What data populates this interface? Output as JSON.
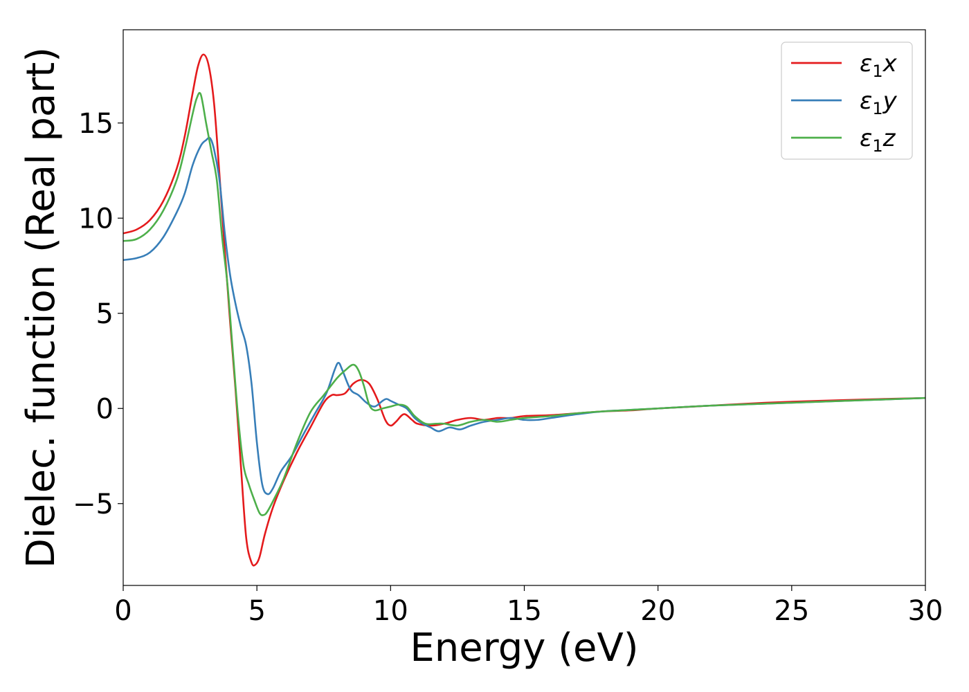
{
  "chart_data": {
    "type": "line",
    "title": "",
    "xlabel": "Energy (eV)",
    "ylabel": "Dielec. function (Real part)",
    "xlim": [
      0,
      30
    ],
    "ylim": [
      -9.3,
      19.9
    ],
    "xticks": [
      0,
      5,
      10,
      15,
      20,
      25,
      30
    ],
    "xtick_labels": [
      "0",
      "5",
      "10",
      "15",
      "20",
      "25",
      "30"
    ],
    "yticks": [
      -5,
      0,
      5,
      10,
      15
    ],
    "ytick_labels": [
      "−5",
      "0",
      "5",
      "10",
      "15"
    ],
    "grid": false,
    "legend_position": "top-right",
    "series": [
      {
        "name": "ε₁x",
        "legend": {
          "base": "ε",
          "sub": "1",
          "var": "x"
        },
        "color": "#e41a1c",
        "x": [
          0,
          0.5,
          1.0,
          1.5,
          2.0,
          2.3,
          2.6,
          2.8,
          3.0,
          3.2,
          3.4,
          3.6,
          3.8,
          4.0,
          4.2,
          4.4,
          4.6,
          4.8,
          4.95,
          5.1,
          5.3,
          5.6,
          6.0,
          6.5,
          7.0,
          7.5,
          7.8,
          8.0,
          8.3,
          8.6,
          8.9,
          9.2,
          9.5,
          9.8,
          10.0,
          10.2,
          10.5,
          10.8,
          11.0,
          11.5,
          12.0,
          12.5,
          13.0,
          13.5,
          14.0,
          14.5,
          15.0,
          16.0,
          17.0,
          18.0,
          19.0,
          20.0,
          22.0,
          24.0,
          26.0,
          28.0,
          30.0
        ],
        "y": [
          9.2,
          9.4,
          9.9,
          10.9,
          12.6,
          14.3,
          16.6,
          18.0,
          18.6,
          18.0,
          16.0,
          12.3,
          8.3,
          4.5,
          1.0,
          -3.0,
          -6.8,
          -8.1,
          -8.2,
          -7.8,
          -6.6,
          -5.2,
          -3.8,
          -2.3,
          -1.0,
          0.3,
          0.7,
          0.7,
          0.8,
          1.3,
          1.5,
          1.3,
          0.5,
          -0.6,
          -0.9,
          -0.7,
          -0.3,
          -0.6,
          -0.8,
          -0.9,
          -0.8,
          -0.6,
          -0.5,
          -0.6,
          -0.5,
          -0.5,
          -0.4,
          -0.35,
          -0.25,
          -0.15,
          -0.1,
          0.0,
          0.15,
          0.3,
          0.4,
          0.48,
          0.55
        ]
      },
      {
        "name": "ε₁y",
        "legend": {
          "base": "ε",
          "sub": "1",
          "var": "y"
        },
        "color": "#377eb8",
        "x": [
          0,
          0.5,
          1.0,
          1.5,
          2.0,
          2.3,
          2.6,
          2.9,
          3.1,
          3.25,
          3.4,
          3.6,
          3.8,
          4.0,
          4.2,
          4.4,
          4.6,
          4.8,
          5.0,
          5.2,
          5.4,
          5.6,
          5.9,
          6.3,
          6.8,
          7.2,
          7.6,
          7.9,
          8.05,
          8.2,
          8.5,
          8.8,
          9.1,
          9.4,
          9.7,
          9.85,
          10.0,
          10.3,
          10.6,
          10.9,
          11.2,
          11.5,
          11.8,
          12.2,
          12.6,
          13.0,
          13.5,
          14.0,
          14.5,
          15.0,
          15.5,
          16.0,
          17.0,
          18.0,
          20.0,
          22.0,
          25.0,
          30.0
        ],
        "y": [
          7.8,
          7.9,
          8.2,
          9.0,
          10.3,
          11.3,
          12.8,
          13.8,
          14.1,
          14.2,
          13.6,
          12.0,
          9.2,
          7.0,
          5.5,
          4.3,
          3.3,
          1.3,
          -1.8,
          -4.0,
          -4.5,
          -4.2,
          -3.3,
          -2.5,
          -1.2,
          -0.2,
          0.8,
          2.0,
          2.4,
          2.0,
          1.0,
          0.7,
          0.3,
          0.1,
          0.4,
          0.5,
          0.4,
          0.2,
          0.0,
          -0.5,
          -0.8,
          -1.0,
          -1.2,
          -1.0,
          -1.1,
          -0.9,
          -0.7,
          -0.6,
          -0.5,
          -0.6,
          -0.6,
          -0.5,
          -0.3,
          -0.15,
          0.0,
          0.15,
          0.3,
          0.55
        ]
      },
      {
        "name": "ε₁z",
        "legend": {
          "base": "ε",
          "sub": "1",
          "var": "z"
        },
        "color": "#4daf4a",
        "x": [
          0,
          0.5,
          1.0,
          1.5,
          2.0,
          2.3,
          2.6,
          2.75,
          2.9,
          3.1,
          3.3,
          3.5,
          3.7,
          3.9,
          4.1,
          4.3,
          4.5,
          4.7,
          4.9,
          5.1,
          5.25,
          5.4,
          5.7,
          6.0,
          6.5,
          7.0,
          7.5,
          8.0,
          8.3,
          8.6,
          8.8,
          9.0,
          9.2,
          9.4,
          9.7,
          10.0,
          10.3,
          10.6,
          10.9,
          11.3,
          11.7,
          12.0,
          12.5,
          13.0,
          13.5,
          14.0,
          14.5,
          15.0,
          16.0,
          17.0,
          18.0,
          20.0,
          22.0,
          25.0,
          30.0
        ],
        "y": [
          8.8,
          8.9,
          9.4,
          10.4,
          12.0,
          13.6,
          15.5,
          16.3,
          16.5,
          15.0,
          13.5,
          12.0,
          9.0,
          6.5,
          3.0,
          -0.5,
          -3.0,
          -4.0,
          -4.8,
          -5.5,
          -5.6,
          -5.4,
          -4.6,
          -3.7,
          -1.8,
          -0.2,
          0.7,
          1.6,
          2.0,
          2.3,
          2.0,
          1.2,
          0.2,
          -0.1,
          0.0,
          0.1,
          0.2,
          0.1,
          -0.4,
          -0.8,
          -0.8,
          -0.8,
          -0.9,
          -0.7,
          -0.6,
          -0.7,
          -0.6,
          -0.5,
          -0.4,
          -0.25,
          -0.15,
          0.0,
          0.15,
          0.3,
          0.55
        ]
      }
    ]
  }
}
